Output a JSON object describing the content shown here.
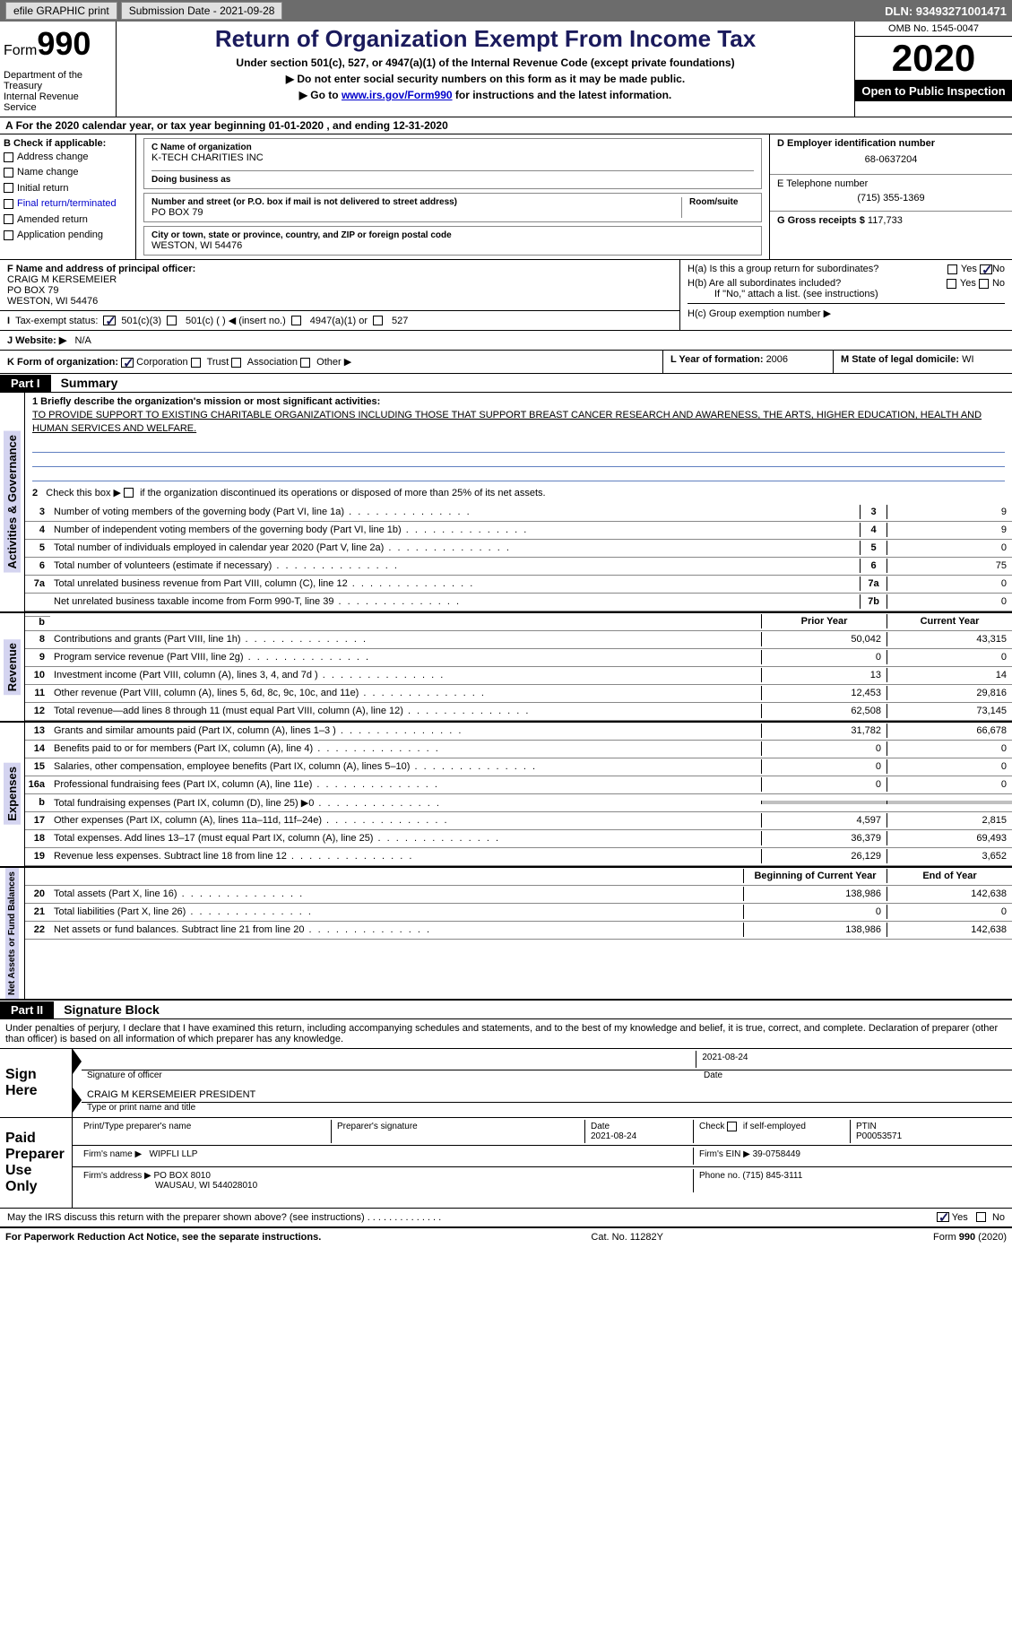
{
  "topBar": {
    "efile": "efile GRAPHIC print",
    "submissionLabel": "Submission Date - 2021-09-28",
    "dln": "DLN: 93493271001471"
  },
  "header": {
    "formWord": "Form",
    "formNum": "990",
    "dept": "Department of the Treasury\nInternal Revenue Service",
    "title": "Return of Organization Exempt From Income Tax",
    "subtitle": "Under section 501(c), 527, or 4947(a)(1) of the Internal Revenue Code (except private foundations)",
    "arrow1": "▶ Do not enter social security numbers on this form as it may be made public.",
    "arrow2_pre": "▶ Go to ",
    "arrow2_link": "www.irs.gov/Form990",
    "arrow2_post": " for instructions and the latest information.",
    "omb": "OMB No. 1545-0047",
    "year": "2020",
    "inspect": "Open to Public Inspection"
  },
  "lineA": "For the 2020 calendar year, or tax year beginning 01-01-2020    , and ending 12-31-2020",
  "colB": {
    "label": "B Check if applicable:",
    "items": [
      "Address change",
      "Name change",
      "Initial return",
      "Final return/terminated",
      "Amended return",
      "Application pending"
    ]
  },
  "colC": {
    "nameLabel": "C Name of organization",
    "name": "K-TECH CHARITIES INC",
    "dbaLabel": "Doing business as",
    "addrLabel": "Number and street (or P.O. box if mail is not delivered to street address)",
    "roomLabel": "Room/suite",
    "addr": "PO BOX 79",
    "cityLabel": "City or town, state or province, country, and ZIP or foreign postal code",
    "city": "WESTON, WI  54476"
  },
  "colD": {
    "einLabel": "D Employer identification number",
    "ein": "68-0637204",
    "phoneLabel": "E Telephone number",
    "phone": "(715) 355-1369",
    "grossLabel": "G Gross receipts $ ",
    "gross": "117,733"
  },
  "rowF": {
    "label": "F  Name and address of principal officer:",
    "name": "CRAIG M KERSEMEIER",
    "addr": "PO BOX 79",
    "city": "WESTON, WI  54476"
  },
  "rowH": {
    "ha": "H(a)  Is this a group return for subordinates?",
    "hb": "H(b)  Are all subordinates included?",
    "hbNote": "If \"No,\" attach a list. (see instructions)",
    "hc": "H(c)  Group exemption number ▶",
    "yes": "Yes",
    "no": "No"
  },
  "statusRow": {
    "label": "Tax-exempt status:",
    "opt1": "501(c)(3)",
    "opt2": "501(c) (  ) ◀ (insert no.)",
    "opt3": "4947(a)(1) or",
    "opt4": "527"
  },
  "websiteRow": {
    "label": "J   Website: ▶",
    "val": "N/A"
  },
  "rowK": {
    "label": "K Form of organization:",
    "opts": [
      "Corporation",
      "Trust",
      "Association",
      "Other ▶"
    ],
    "lLabel": "L Year of formation: ",
    "lVal": "2006",
    "mLabel": "M State of legal domicile: ",
    "mVal": "WI"
  },
  "part1": {
    "header": "Part I",
    "title": "Summary",
    "line1Label": "1   Briefly describe the organization's mission or most significant activities:",
    "mission": "TO PROVIDE SUPPORT TO EXISTING CHARITABLE ORGANIZATIONS INCLUDING THOSE THAT SUPPORT BREAST CANCER RESEARCH AND AWARENESS, THE ARTS, HIGHER EDUCATION, HEALTH AND HUMAN SERVICES AND WELFARE.",
    "line2": "Check this box ▶     if the organization discontinued its operations or disposed of more than 25% of its net assets.",
    "govLines": [
      {
        "n": "3",
        "d": "Number of voting members of the governing body (Part VI, line 1a)",
        "b": "3",
        "v": "9"
      },
      {
        "n": "4",
        "d": "Number of independent voting members of the governing body (Part VI, line 1b)",
        "b": "4",
        "v": "9"
      },
      {
        "n": "5",
        "d": "Total number of individuals employed in calendar year 2020 (Part V, line 2a)",
        "b": "5",
        "v": "0"
      },
      {
        "n": "6",
        "d": "Total number of volunteers (estimate if necessary)",
        "b": "6",
        "v": "75"
      },
      {
        "n": "7a",
        "d": "Total unrelated business revenue from Part VIII, column (C), line 12",
        "b": "7a",
        "v": "0"
      },
      {
        "n": "",
        "d": "Net unrelated business taxable income from Form 990-T, line 39",
        "b": "7b",
        "v": "0"
      }
    ],
    "priorLabel": "Prior Year",
    "currentLabel": "Current Year",
    "revLines": [
      {
        "n": "8",
        "d": "Contributions and grants (Part VIII, line 1h)",
        "p": "50,042",
        "c": "43,315"
      },
      {
        "n": "9",
        "d": "Program service revenue (Part VIII, line 2g)",
        "p": "0",
        "c": "0"
      },
      {
        "n": "10",
        "d": "Investment income (Part VIII, column (A), lines 3, 4, and 7d )",
        "p": "13",
        "c": "14"
      },
      {
        "n": "11",
        "d": "Other revenue (Part VIII, column (A), lines 5, 6d, 8c, 9c, 10c, and 11e)",
        "p": "12,453",
        "c": "29,816"
      },
      {
        "n": "12",
        "d": "Total revenue—add lines 8 through 11 (must equal Part VIII, column (A), line 12)",
        "p": "62,508",
        "c": "73,145"
      }
    ],
    "expLines": [
      {
        "n": "13",
        "d": "Grants and similar amounts paid (Part IX, column (A), lines 1–3 )",
        "p": "31,782",
        "c": "66,678"
      },
      {
        "n": "14",
        "d": "Benefits paid to or for members (Part IX, column (A), line 4)",
        "p": "0",
        "c": "0"
      },
      {
        "n": "15",
        "d": "Salaries, other compensation, employee benefits (Part IX, column (A), lines 5–10)",
        "p": "0",
        "c": "0"
      },
      {
        "n": "16a",
        "d": "Professional fundraising fees (Part IX, column (A), line 11e)",
        "p": "0",
        "c": "0"
      },
      {
        "n": "b",
        "d": "Total fundraising expenses (Part IX, column (D), line 25) ▶0",
        "p": "GRAY",
        "c": "GRAY"
      },
      {
        "n": "17",
        "d": "Other expenses (Part IX, column (A), lines 11a–11d, 11f–24e)",
        "p": "4,597",
        "c": "2,815"
      },
      {
        "n": "18",
        "d": "Total expenses. Add lines 13–17 (must equal Part IX, column (A), line 25)",
        "p": "36,379",
        "c": "69,493"
      },
      {
        "n": "19",
        "d": "Revenue less expenses. Subtract line 18 from line 12",
        "p": "26,129",
        "c": "3,652"
      }
    ],
    "beginLabel": "Beginning of Current Year",
    "endLabel": "End of Year",
    "netLines": [
      {
        "n": "20",
        "d": "Total assets (Part X, line 16)",
        "p": "138,986",
        "c": "142,638"
      },
      {
        "n": "21",
        "d": "Total liabilities (Part X, line 26)",
        "p": "0",
        "c": "0"
      },
      {
        "n": "22",
        "d": "Net assets or fund balances. Subtract line 21 from line 20",
        "p": "138,986",
        "c": "142,638"
      }
    ],
    "vertGov": "Activities & Governance",
    "vertRev": "Revenue",
    "vertExp": "Expenses",
    "vertNet": "Net Assets or Fund Balances"
  },
  "part2": {
    "header": "Part II",
    "title": "Signature Block",
    "declare": "Under penalties of perjury, I declare that I have examined this return, including accompanying schedules and statements, and to the best of my knowledge and belief, it is true, correct, and complete. Declaration of preparer (other than officer) is based on all information of which preparer has any knowledge.",
    "signHere": "Sign Here",
    "sigOfficer": "Signature of officer",
    "sigDate": "Date",
    "sigDateVal": "2021-08-24",
    "sigName": "CRAIG M KERSEMEIER  PRESIDENT",
    "sigNameLabel": "Type or print name and title",
    "paidPrep": "Paid Preparer Use Only",
    "prepName": "Print/Type preparer's name",
    "prepSig": "Preparer's signature",
    "prepDate": "Date",
    "prepDateVal": "2021-08-24",
    "prepCheck": "Check      if self-employed",
    "ptinLabel": "PTIN",
    "ptin": "P00053571",
    "firmName": "Firm's name    ▶",
    "firmNameVal": "WIPFLI LLP",
    "firmEin": "Firm's EIN ▶",
    "firmEinVal": "39-0758449",
    "firmAddr": "Firm's address ▶",
    "firmAddrVal": "PO BOX 8010",
    "firmCity": "WAUSAU, WI  544028010",
    "firmPhone": "Phone no. ",
    "firmPhoneVal": "(715) 845-3111",
    "discuss": "May the IRS discuss this return with the preparer shown above? (see instructions)"
  },
  "footer": {
    "left": "For Paperwork Reduction Act Notice, see the separate instructions.",
    "mid": "Cat. No. 11282Y",
    "right": "Form 990 (2020)"
  }
}
